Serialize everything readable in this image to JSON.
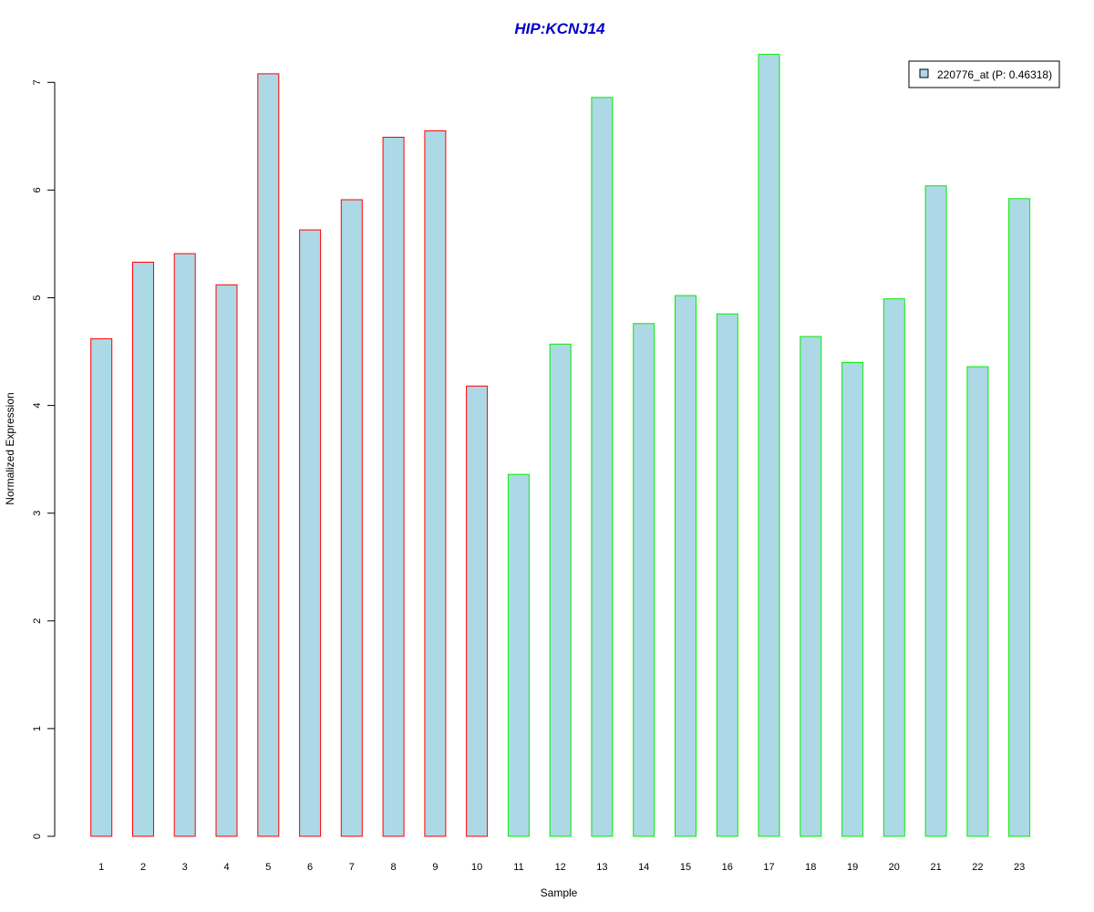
{
  "chart_data": {
    "type": "bar",
    "title": "HIP:KCNJ14",
    "xlabel": "Sample",
    "ylabel": "Normalized Expression",
    "categories": [
      "1",
      "2",
      "3",
      "4",
      "5",
      "6",
      "7",
      "8",
      "9",
      "10",
      "11",
      "12",
      "13",
      "14",
      "15",
      "16",
      "17",
      "18",
      "19",
      "20",
      "21",
      "22",
      "23"
    ],
    "series": [
      {
        "name": "220776_at (P: 0.46318)",
        "values": [
          4.62,
          5.33,
          5.41,
          5.12,
          7.08,
          5.63,
          5.91,
          6.49,
          6.55,
          4.18,
          3.36,
          4.57,
          6.86,
          4.76,
          5.02,
          4.85,
          7.26,
          4.64,
          4.4,
          4.99,
          6.04,
          4.36,
          5.92
        ]
      }
    ],
    "groups": [
      {
        "samples": [
          1,
          2,
          3,
          4,
          5,
          6,
          7,
          8,
          9,
          10
        ],
        "border_color": "#ff0000"
      },
      {
        "samples": [
          11,
          12,
          13,
          14,
          15,
          16,
          17,
          18,
          19,
          20,
          21,
          22,
          23
        ],
        "border_color": "#00ee00"
      }
    ],
    "yticks": [
      0,
      1,
      2,
      3,
      4,
      5,
      6,
      7
    ],
    "ylim": [
      0,
      7.26
    ],
    "bar_fill": "#add8e6",
    "title_color": "#0000cc",
    "legend": {
      "label": "220776_at (P: 0.46318)",
      "position": "top-right"
    },
    "grid": false
  }
}
